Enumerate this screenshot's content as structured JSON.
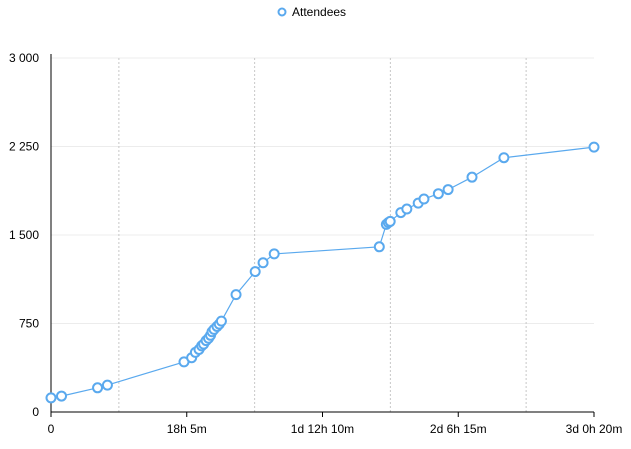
{
  "chart_data": {
    "type": "line",
    "legend": {
      "position": "top-center",
      "entries": [
        "Attendees"
      ]
    },
    "series": [
      {
        "name": "Attendees",
        "color": "#5aa9ee",
        "marker": "circle-hollow",
        "points": [
          {
            "x": "0",
            "y": 120
          },
          {
            "x": "1h 24m",
            "y": 135
          },
          {
            "x": "6h 12m",
            "y": 205
          },
          {
            "x": "7h 31m",
            "y": 228
          },
          {
            "x": "17h 43m",
            "y": 425
          },
          {
            "x": "18h 44m",
            "y": 460
          },
          {
            "x": "19h 14m",
            "y": 505
          },
          {
            "x": "19h 43m",
            "y": 530
          },
          {
            "x": "20h 4m",
            "y": 560
          },
          {
            "x": "20h 20m",
            "y": 575
          },
          {
            "x": "20h 40m",
            "y": 605
          },
          {
            "x": "20h 59m",
            "y": 625
          },
          {
            "x": "21h 15m",
            "y": 650
          },
          {
            "x": "21h 27m",
            "y": 680
          },
          {
            "x": "21h 43m",
            "y": 700
          },
          {
            "x": "22h 7m",
            "y": 725
          },
          {
            "x": "22h 25m",
            "y": 745
          },
          {
            "x": "22h 42m",
            "y": 770
          },
          {
            "x": "1d 0h 39m",
            "y": 995
          },
          {
            "x": "1d 3h 12m",
            "y": 1190
          },
          {
            "x": "1d 4h 15m",
            "y": 1265
          },
          {
            "x": "1d 5h 44m",
            "y": 1340
          },
          {
            "x": "1d 19h 44m",
            "y": 1400
          },
          {
            "x": "1d 20h 40m",
            "y": 1590
          },
          {
            "x": "1d 20h 56m",
            "y": 1605
          },
          {
            "x": "1d 21h 11m",
            "y": 1615
          },
          {
            "x": "1d 22h 36m",
            "y": 1690
          },
          {
            "x": "1d 23h 24m",
            "y": 1720
          },
          {
            "x": "2d 0h 55m",
            "y": 1770
          },
          {
            "x": "2d 1h 41m",
            "y": 1805
          },
          {
            "x": "2d 3h 36m",
            "y": 1850
          },
          {
            "x": "2d 4h 54m",
            "y": 1885
          },
          {
            "x": "2d 8h 5m",
            "y": 1990
          },
          {
            "x": "2d 12h 20m",
            "y": 2155
          },
          {
            "x": "3d 0h 20m",
            "y": 2245
          }
        ]
      }
    ],
    "x_axis": {
      "unit": "minutes",
      "range": [
        "0",
        "3d 0h 20m"
      ],
      "tick_labels": [
        "0",
        "18h 5m",
        "1d 12h 10m",
        "2d 6h 15m",
        "3d 0h 20m"
      ],
      "grid": "dotted vertical at minor ticks"
    },
    "y_axis": {
      "range": [
        0,
        3000
      ],
      "tick_labels": [
        "0",
        "750",
        "1 500",
        "2 250",
        "3 000"
      ],
      "grid": "horizontal"
    }
  }
}
